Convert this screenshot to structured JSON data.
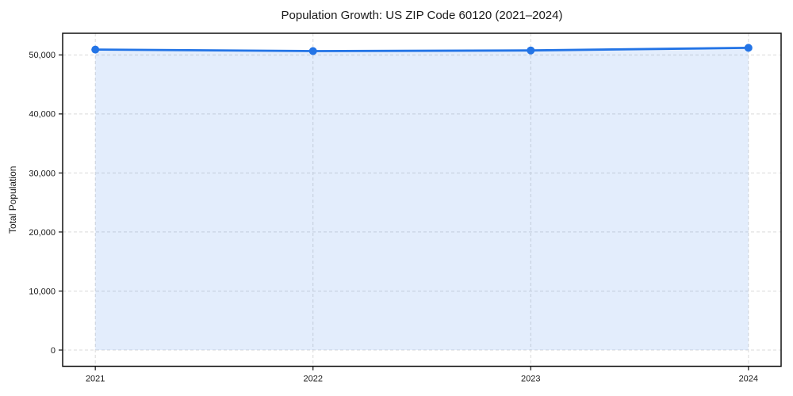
{
  "chart_data": {
    "type": "line",
    "area_fill": true,
    "title": "Population Growth: US ZIP Code 60120 (2021–2024)",
    "xlabel": "",
    "ylabel": "Total Population",
    "categories": [
      "2021",
      "2022",
      "2023",
      "2024"
    ],
    "x": [
      2021,
      2022,
      2023,
      2024
    ],
    "series": [
      {
        "name": "Total Population",
        "values": [
          50900,
          50650,
          50750,
          51200
        ]
      }
    ],
    "yticks": [
      0,
      10000,
      20000,
      30000,
      40000,
      50000
    ],
    "ytick_labels": [
      "0",
      "10,000",
      "20,000",
      "30,000",
      "40,000",
      "50,000"
    ],
    "xlim": [
      2020.85,
      2024.15
    ],
    "ylim": [
      -2750,
      53667
    ],
    "grid": "on",
    "grid_style": "dashed",
    "legend_position": "none",
    "colors": {
      "line": "#2374e6",
      "marker": "#2374e6",
      "area_fill": "#2374e6",
      "area_fill_opacity": 0.13,
      "grid": "#d9d9d9",
      "spine": "#111111",
      "background": "#ffffff",
      "text": "#1a1a1a"
    }
  }
}
